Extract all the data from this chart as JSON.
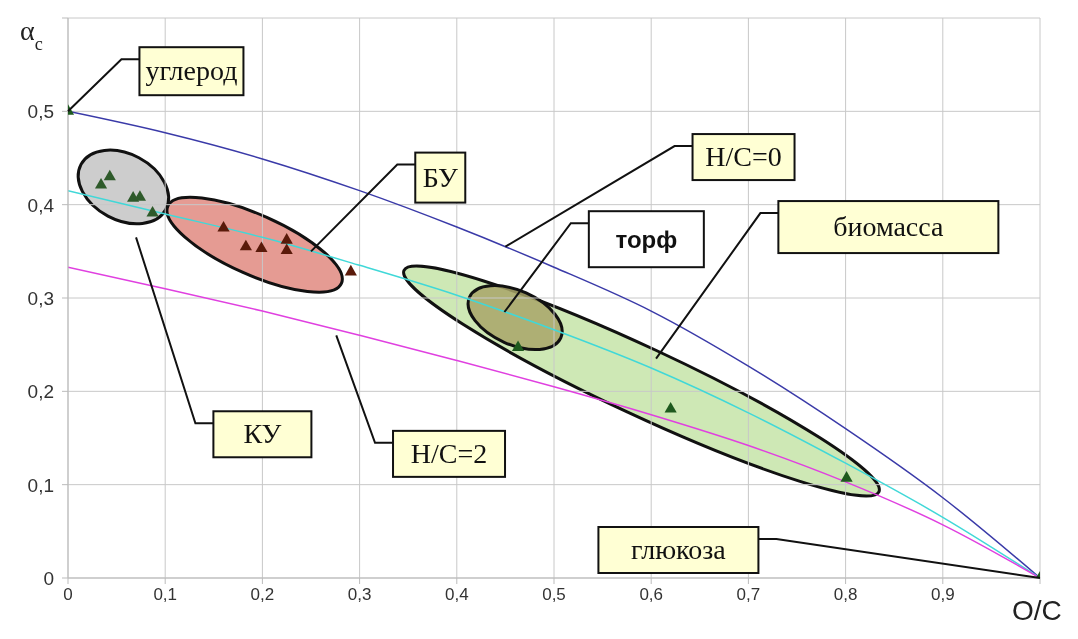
{
  "chart_data": {
    "type": "scatter",
    "xlabel": "O/C",
    "ylabel": "α$_{c}$",
    "xlim": [
      0,
      1
    ],
    "ylim": [
      0,
      0.6
    ],
    "xticks": [
      0,
      {
        "value": 0.1,
        "label": "0,1"
      },
      {
        "value": 0.2,
        "label": "0,2"
      },
      {
        "value": 0.3,
        "label": "0,3"
      },
      {
        "value": 0.4,
        "label": "0,4"
      },
      {
        "value": 0.5,
        "label": "0,5"
      },
      {
        "value": 0.6,
        "label": "0,6"
      },
      {
        "value": 0.7,
        "label": "0,7"
      },
      {
        "value": 0.8,
        "label": "0,8"
      },
      {
        "value": 0.9,
        "label": "0,9"
      },
      {
        "value": 1,
        "label": null
      }
    ],
    "yticks": [
      0,
      {
        "value": 0.1,
        "label": "0,1"
      },
      {
        "value": 0.2,
        "label": "0,2"
      },
      {
        "value": 0.3,
        "label": "0,3"
      },
      {
        "value": 0.4,
        "label": "0,4"
      },
      {
        "value": 0.5,
        "label": "0,5"
      },
      {
        "value": 0.6,
        "label": null
      }
    ],
    "grid": true,
    "series": [
      {
        "type": "line",
        "color": "#3a3aa8",
        "x": [
          0,
          0.1,
          0.2,
          0.3,
          0.4,
          0.5,
          0.6,
          0.7,
          0.8,
          0.9,
          1
        ],
        "values": [
          0.5,
          0.477,
          0.449,
          0.415,
          0.376,
          0.333,
          0.286,
          0.227,
          0.16,
          0.086,
          0
        ]
      },
      {
        "type": "line",
        "color": "#40d8d8",
        "x": [
          0,
          0.1,
          0.2,
          0.3,
          0.4,
          0.5,
          0.6,
          0.7,
          0.8,
          0.9,
          1
        ],
        "values": [
          0.415,
          0.39,
          0.365,
          0.335,
          0.303,
          0.266,
          0.225,
          0.177,
          0.123,
          0.065,
          0
        ]
      },
      {
        "type": "line",
        "color": "#e040e0",
        "x": [
          0,
          0.1,
          0.2,
          0.3,
          0.4,
          0.5,
          0.6,
          0.7,
          0.8,
          0.9,
          1
        ],
        "values": [
          0.333,
          0.31,
          0.286,
          0.26,
          0.233,
          0.205,
          0.175,
          0.142,
          0.103,
          0.057,
          0
        ]
      },
      {
        "type": "scatter",
        "marker": "triangle",
        "color": "#2e5a2a",
        "x": [
          0.034,
          0.043,
          0.067,
          0.074,
          0.087
        ],
        "values": [
          0.421,
          0.43,
          0.407,
          0.408,
          0.391
        ]
      },
      {
        "type": "scatter",
        "marker": "triangle",
        "color": "#5a1a0a",
        "x": [
          0.16,
          0.183,
          0.199,
          0.225,
          0.225,
          0.291
        ],
        "values": [
          0.375,
          0.355,
          0.353,
          0.362,
          0.351,
          0.328
        ]
      },
      {
        "type": "scatter",
        "marker": "triangle",
        "color": "#1e5a1e",
        "x": [
          0,
          0.463,
          0.62,
          0.801,
          1
        ],
        "values": [
          0.5,
          0.247,
          0.181,
          0.107,
          0
        ]
      }
    ],
    "annotations": [
      {
        "text": "углерод",
        "x": 0,
        "y": 0.5
      },
      "КУ",
      {
        "text": "БУ",
        "x": 0.25,
        "y": 0.35
      },
      {
        "text": "H/C=0",
        "x": 0.45,
        "y": 0.355
      },
      {
        "text": "H/C=2",
        "x": 0.276,
        "y": 0.26
      },
      {
        "text": "торф",
        "x": 0.449,
        "y": 0.285
      },
      "биомасса",
      {
        "text": "глюкоза",
        "x": 1,
        "y": 0
      }
    ]
  }
}
